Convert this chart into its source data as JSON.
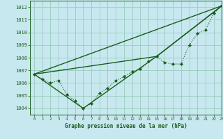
{
  "xlabel": "Graphe pression niveau de la mer (hPa)",
  "ylim": [
    1003.5,
    1012.5
  ],
  "xlim": [
    -0.5,
    23
  ],
  "yticks": [
    1004,
    1005,
    1006,
    1007,
    1008,
    1009,
    1010,
    1011,
    1012
  ],
  "xticks": [
    0,
    1,
    2,
    3,
    4,
    5,
    6,
    7,
    8,
    9,
    10,
    11,
    12,
    13,
    14,
    15,
    16,
    17,
    18,
    19,
    20,
    21,
    22,
    23
  ],
  "bg_color": "#c8e8f0",
  "line_color": "#1a5c1a",
  "grid_color": "#99ccbb",
  "series": [
    {
      "x": [
        0,
        1,
        2,
        3,
        4,
        5,
        6,
        7,
        8,
        9,
        10,
        11,
        12,
        13,
        14,
        15,
        16,
        17,
        18,
        19,
        20,
        21,
        22,
        23
      ],
      "y": [
        1006.7,
        1006.3,
        1006.0,
        1006.2,
        1005.1,
        1004.6,
        1004.0,
        1004.4,
        1005.2,
        1005.6,
        1006.2,
        1006.5,
        1006.9,
        1007.1,
        1007.7,
        1008.1,
        1007.6,
        1007.5,
        1007.5,
        1009.0,
        1009.9,
        1010.2,
        1011.5,
        1012.1
      ],
      "style": "dotted_marker",
      "marker": "D",
      "markersize": 2.0,
      "linewidth": 0.8
    },
    {
      "x": [
        0,
        23
      ],
      "y": [
        1006.7,
        1012.1
      ],
      "style": "line",
      "linewidth": 1.0
    },
    {
      "x": [
        0,
        15,
        23
      ],
      "y": [
        1006.7,
        1008.1,
        1012.1
      ],
      "style": "line",
      "linewidth": 1.0
    },
    {
      "x": [
        0,
        6,
        15,
        23
      ],
      "y": [
        1006.7,
        1004.0,
        1008.1,
        1012.1
      ],
      "style": "line",
      "linewidth": 1.0
    }
  ],
  "subplots_adjust": [
    0.135,
    0.175,
    0.995,
    0.995
  ]
}
